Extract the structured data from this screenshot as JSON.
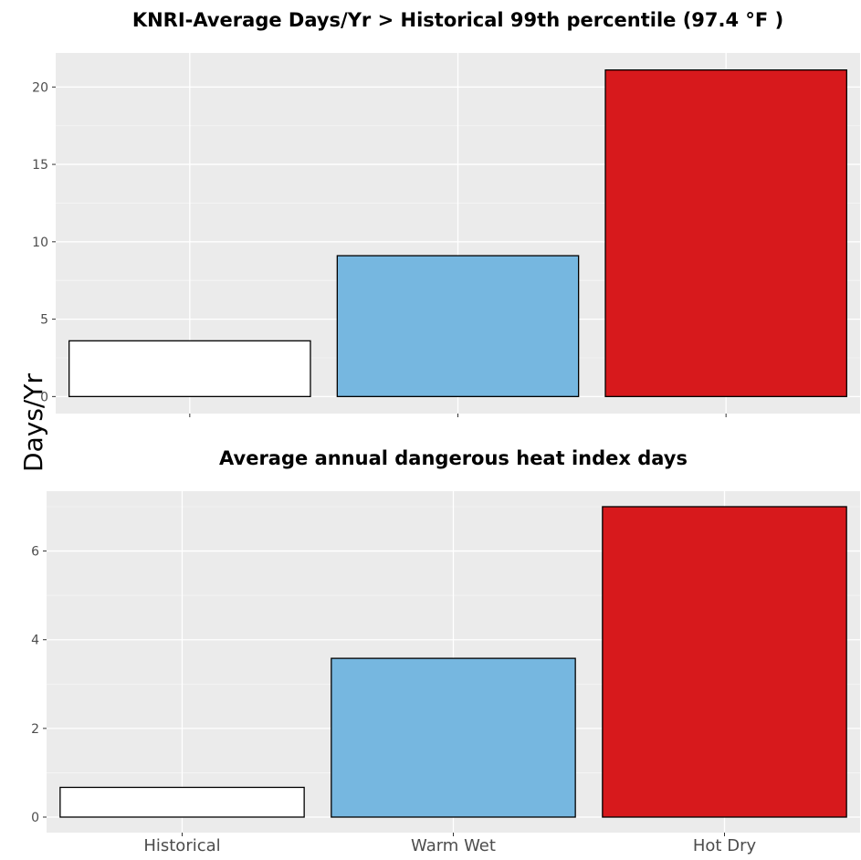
{
  "ylabel": "Days/Yr",
  "chart_data": [
    {
      "type": "bar",
      "title": "KNRI-Average Days/Yr > Historical 99th percentile (97.4 °F )",
      "categories": [
        "Historical",
        "Warm Wet",
        "Hot Dry"
      ],
      "show_category_labels": false,
      "values": [
        3.6,
        9.1,
        21.1
      ],
      "colors": [
        "#ffffff",
        "#76b7e0",
        "#d7191c"
      ],
      "ylim": [
        -1.1,
        22.2
      ],
      "yticks": [
        0,
        5,
        10,
        15,
        20
      ],
      "grid": true
    },
    {
      "type": "bar",
      "title": "Average annual dangerous heat index days",
      "categories": [
        "Historical",
        "Warm Wet",
        "Hot Dry"
      ],
      "show_category_labels": true,
      "values": [
        0.67,
        3.58,
        7.0
      ],
      "colors": [
        "#ffffff",
        "#76b7e0",
        "#d7191c"
      ],
      "ylim": [
        -0.35,
        7.35
      ],
      "yticks": [
        0,
        2,
        4,
        6
      ],
      "grid": true
    }
  ]
}
